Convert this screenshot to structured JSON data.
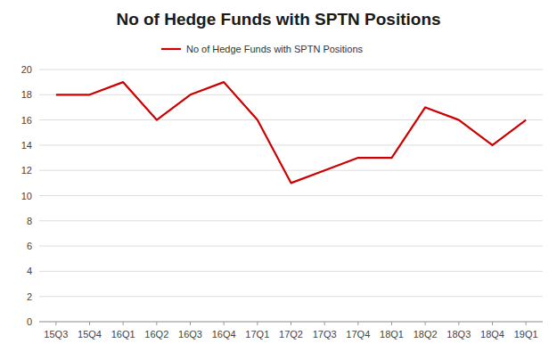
{
  "chart_data": {
    "type": "line",
    "title": "No of Hedge Funds with SPTN Positions",
    "categories": [
      "15Q3",
      "15Q4",
      "16Q1",
      "16Q2",
      "16Q3",
      "16Q4",
      "17Q1",
      "17Q2",
      "17Q3",
      "17Q4",
      "18Q1",
      "18Q2",
      "18Q3",
      "18Q4",
      "19Q1"
    ],
    "series": [
      {
        "name": "No of Hedge Funds with SPTN Positions",
        "color": "#cc0000",
        "values": [
          18,
          18,
          19,
          16,
          18,
          19,
          16,
          11,
          12,
          13,
          13,
          17,
          16,
          14,
          16
        ]
      }
    ],
    "ylim": [
      0,
      20
    ],
    "yticks": [
      0,
      2,
      4,
      6,
      8,
      10,
      12,
      14,
      16,
      18,
      20
    ],
    "grid": true,
    "legend": "top"
  }
}
